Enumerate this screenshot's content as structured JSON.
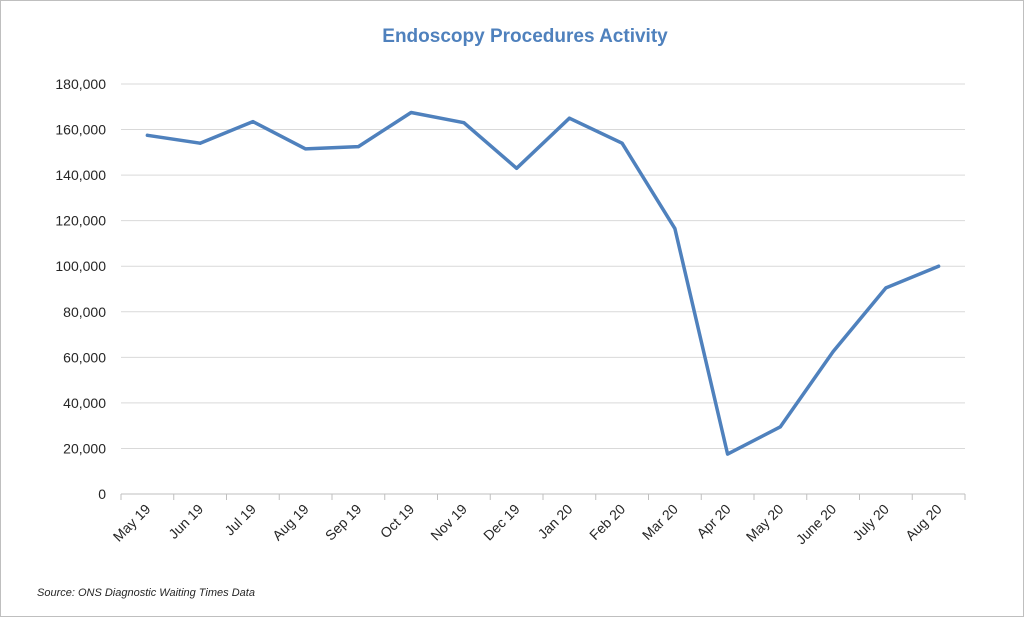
{
  "chart_data": {
    "type": "line",
    "title": "Endoscopy Procedures Activity",
    "xlabel": "",
    "ylabel": "",
    "categories": [
      "May 19",
      "Jun 19",
      "Jul 19",
      "Aug 19",
      "Sep 19",
      "Oct 19",
      "Nov 19",
      "Dec 19",
      "Jan 20",
      "Feb 20",
      "Mar 20",
      "Apr 20",
      "May 20",
      "June 20",
      "July 20",
      "Aug 20"
    ],
    "series": [
      {
        "values": [
          157500,
          154000,
          163500,
          151500,
          152500,
          167500,
          163000,
          143000,
          165000,
          154000,
          116500,
          17500,
          29500,
          62500,
          90500,
          100000
        ]
      }
    ],
    "ylim": [
      0,
      180000
    ],
    "yticks": [
      "0",
      "20,000",
      "40,000",
      "60,000",
      "80,000",
      "100,000",
      "120,000",
      "140,000",
      "160,000",
      "180,000"
    ],
    "ytick_values": [
      0,
      20000,
      40000,
      60000,
      80000,
      100000,
      120000,
      140000,
      160000,
      180000
    ],
    "grid": true,
    "legend": "none",
    "line_color": "#4f81bd"
  },
  "footer": {
    "source": "Source: ONS Diagnostic Waiting Times Data"
  }
}
